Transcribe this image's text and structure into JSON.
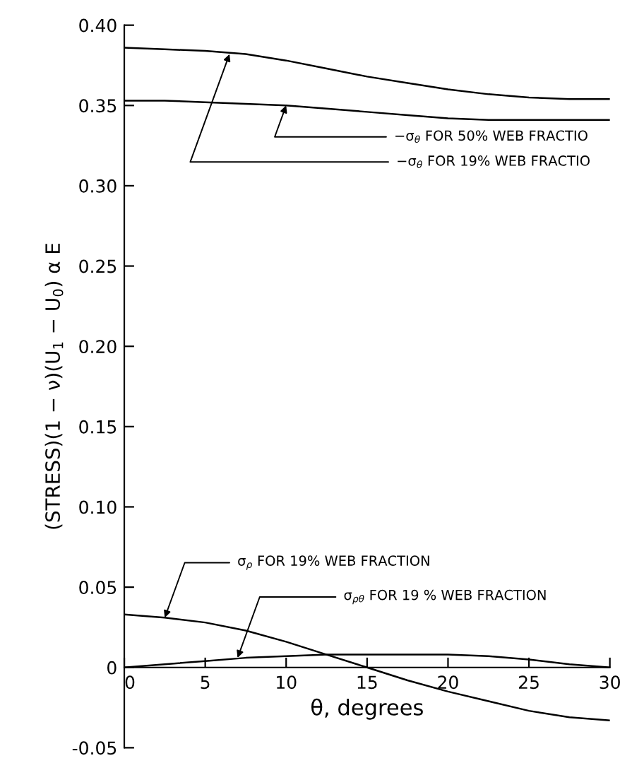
{
  "chart_data": {
    "type": "line",
    "xlabel": "θ, degrees",
    "ylabel": "(STRESS)(1 − ν)(U$_{1}$ − U$_{0}$) α E",
    "xlim": [
      0,
      30
    ],
    "xticks": [
      {
        "value": 0,
        "label": "0"
      },
      5,
      10,
      15,
      20,
      25,
      30
    ],
    "ylim": [
      -0.05,
      0.4
    ],
    "yticks": [
      -0.05,
      {
        "value": 0,
        "label": "0"
      },
      0.05,
      {
        "value": 0.1,
        "label": "0.10"
      },
      0.15,
      {
        "value": 0.2,
        "label": "0.20"
      },
      0.25,
      {
        "value": 0.3,
        "label": "0.30"
      },
      0.35,
      {
        "value": 0.4,
        "label": "0.40"
      }
    ],
    "grid": false,
    "marker": "none",
    "line_style": "solid",
    "x": [
      0,
      2.5,
      5,
      7.5,
      10,
      12.5,
      15,
      17.5,
      20,
      22.5,
      25,
      27.5,
      30
    ],
    "series": [
      {
        "color": "#000000",
        "values": [
          0.386,
          0.385,
          0.384,
          0.382,
          0.378,
          0.373,
          0.368,
          0.364,
          0.36,
          0.357,
          0.355,
          0.354,
          0.354
        ]
      },
      {
        "color": "#000000",
        "values": [
          0.353,
          0.353,
          0.352,
          0.351,
          0.35,
          0.348,
          0.346,
          0.344,
          0.342,
          0.341,
          0.341,
          0.341,
          0.341
        ]
      },
      {
        "color": "#000000",
        "values": [
          0.033,
          0.031,
          0.028,
          0.023,
          0.016,
          0.008,
          0.0,
          -0.008,
          -0.015,
          -0.021,
          -0.027,
          -0.031,
          -0.033
        ]
      },
      {
        "color": "#000000",
        "values": [
          0.0,
          0.002,
          0.004,
          0.006,
          0.007,
          0.008,
          0.008,
          0.008,
          0.008,
          0.007,
          0.005,
          0.002,
          0.0
        ]
      }
    ],
    "annotations": [
      {
        "text": "−σ$_{θ}$ FOR 50% WEB FRACTIO",
        "x": 10,
        "y": 0.35
      },
      {
        "text": "−σ$_{θ}$ FOR 19% WEB FRACTIO",
        "x": 6.5,
        "y": 0.382
      },
      {
        "text": "σ$_{ρ}$ FOR 19% WEB FRACTION",
        "x": 2.5,
        "y": 0.031
      },
      {
        "text": "σ$_{ρθ}$ FOR 19 % WEB FRACTION",
        "x": 7,
        "y": 0.006
      }
    ]
  }
}
